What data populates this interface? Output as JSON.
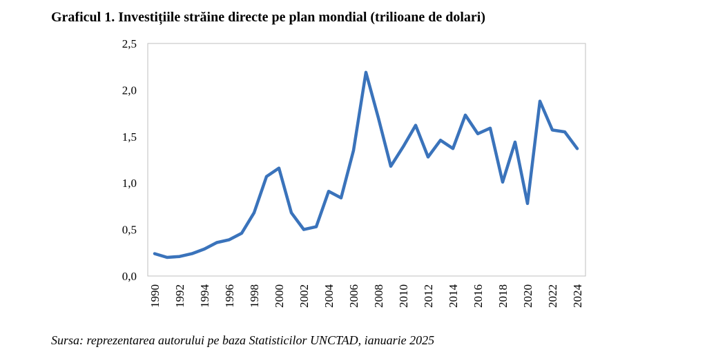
{
  "title": "Graficul 1. Investițiile străine directe pe plan mondial (trilioane de dolari)",
  "source": "Sursa: reprezentarea autorului pe baza Statisticilor UNCTAD, ianuarie 2025",
  "chart_data": {
    "type": "line",
    "title": "Graficul 1. Investițiile străine directe pe plan mondial (trilioane de dolari)",
    "xlabel": "",
    "ylabel": "",
    "ylim": [
      0,
      2.5
    ],
    "yticks": [
      "0,0",
      "0,5",
      "1,0",
      "1,5",
      "2,0",
      "2,5"
    ],
    "ytick_values": [
      0,
      0.5,
      1.0,
      1.5,
      2.0,
      2.5
    ],
    "xticks": [
      "1990",
      "1992",
      "1994",
      "1996",
      "1998",
      "2000",
      "2002",
      "2004",
      "2006",
      "2008",
      "2010",
      "2012",
      "2014",
      "2016",
      "2018",
      "2020",
      "2022",
      "2024"
    ],
    "grid": false,
    "legend": "none",
    "line_color": "#3a73bb",
    "series": [
      {
        "x": [
          1990,
          1991,
          1992,
          1993,
          1994,
          1995,
          1996,
          1997,
          1998,
          1999,
          2000,
          2001,
          2002,
          2003,
          2004,
          2005,
          2006,
          2007,
          2008,
          2009,
          2010,
          2011,
          2012,
          2013,
          2014,
          2015,
          2016,
          2017,
          2018,
          2019,
          2020,
          2021,
          2022,
          2023,
          2024
        ],
        "values": [
          0.24,
          0.2,
          0.21,
          0.24,
          0.29,
          0.36,
          0.39,
          0.46,
          0.68,
          1.07,
          1.16,
          0.68,
          0.5,
          0.53,
          0.91,
          0.84,
          1.35,
          2.19,
          1.7,
          1.18,
          1.39,
          1.62,
          1.28,
          1.46,
          1.37,
          1.73,
          1.53,
          1.59,
          1.01,
          1.44,
          0.78,
          1.88,
          1.57,
          1.55,
          1.37
        ]
      }
    ]
  }
}
